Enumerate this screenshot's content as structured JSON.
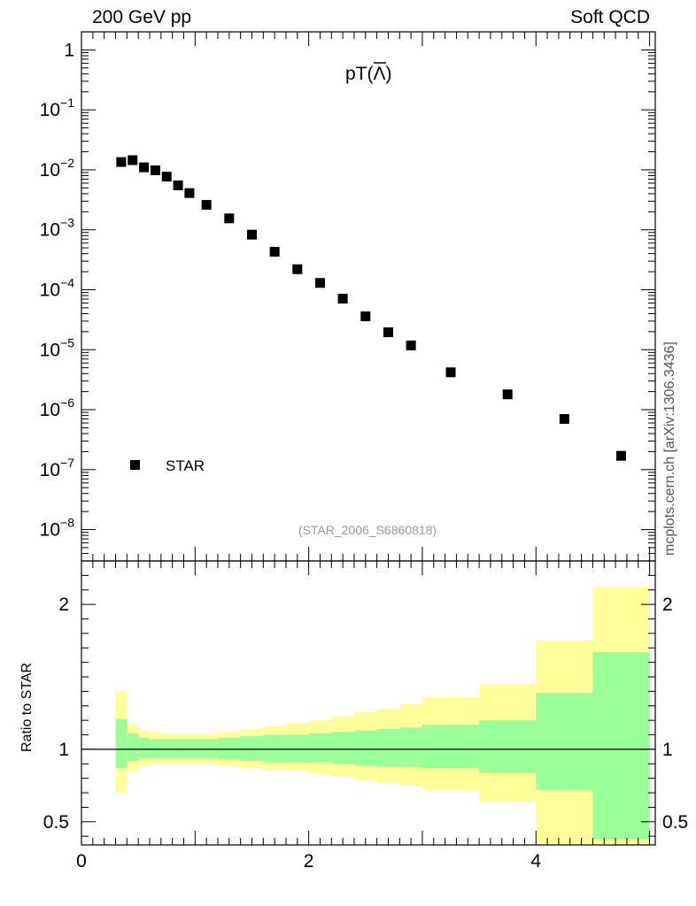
{
  "header": {
    "left": "200 GeV pp",
    "right": "Soft QCD",
    "side_note": "mcplots.cern.ch [arXiv:1306.3436]"
  },
  "chart_data": [
    {
      "type": "scatter",
      "title": "pT(Λ̄)",
      "title_main": "pT(",
      "title_symbol": "Λ",
      "title_close": ")",
      "reference": "(STAR_2006_S6860818)",
      "legend": [
        "STAR"
      ],
      "legend_position": "bottom-left",
      "yscale": "log",
      "xlim": [
        0,
        5.05
      ],
      "ylim": [
        3e-09,
        2
      ],
      "ytick_labels": [
        {
          "base": "1",
          "exp": ""
        },
        {
          "base": "10",
          "exp": "−1"
        },
        {
          "base": "10",
          "exp": "−2"
        },
        {
          "base": "10",
          "exp": "−3"
        },
        {
          "base": "10",
          "exp": "−4"
        },
        {
          "base": "10",
          "exp": "−5"
        },
        {
          "base": "10",
          "exp": "−6"
        },
        {
          "base": "10",
          "exp": "−7"
        },
        {
          "base": "10",
          "exp": "−8"
        }
      ],
      "series": [
        {
          "name": "STAR",
          "x": [
            0.35,
            0.45,
            0.55,
            0.65,
            0.75,
            0.85,
            0.95,
            1.1,
            1.3,
            1.5,
            1.7,
            1.9,
            2.1,
            2.3,
            2.5,
            2.7,
            2.9,
            3.25,
            3.75,
            4.25,
            4.75
          ],
          "y": [
            0.0135,
            0.0145,
            0.011,
            0.0098,
            0.0077,
            0.0055,
            0.0041,
            0.0026,
            0.00155,
            0.00083,
            0.00043,
            0.00022,
            0.00013,
            7.1e-05,
            3.6e-05,
            1.95e-05,
            1.18e-05,
            4.2e-06,
            1.8e-06,
            7e-07,
            1.7e-07
          ]
        }
      ]
    },
    {
      "type": "area",
      "ylabel": "Ratio to STAR",
      "xlim": [
        0,
        5.05
      ],
      "ylim": [
        0.34,
        2.3
      ],
      "xtick_labels": [
        "0",
        "2",
        "4"
      ],
      "ytick_labels": [
        "0.5",
        "1",
        "2"
      ],
      "bin_edges": [
        0.3,
        0.4,
        0.5,
        0.6,
        0.7,
        0.8,
        0.9,
        1.0,
        1.2,
        1.4,
        1.6,
        1.8,
        2.0,
        2.2,
        2.4,
        2.6,
        2.8,
        3.0,
        3.5,
        4.0,
        4.5,
        5.0
      ],
      "bands": [
        {
          "name": "yellow",
          "color": "#ffff99",
          "hi": [
            1.4,
            1.17,
            1.13,
            1.12,
            1.11,
            1.11,
            1.11,
            1.11,
            1.12,
            1.14,
            1.16,
            1.18,
            1.2,
            1.23,
            1.26,
            1.28,
            1.31,
            1.36,
            1.45,
            1.75,
            2.12
          ],
          "lo": [
            0.7,
            0.85,
            0.89,
            0.9,
            0.9,
            0.9,
            0.9,
            0.9,
            0.89,
            0.87,
            0.86,
            0.85,
            0.83,
            0.81,
            0.79,
            0.77,
            0.75,
            0.72,
            0.64,
            0.33,
            0.33
          ]
        },
        {
          "name": "green",
          "color": "#99ff99",
          "hi": [
            1.21,
            1.11,
            1.08,
            1.07,
            1.07,
            1.07,
            1.07,
            1.07,
            1.08,
            1.09,
            1.1,
            1.1,
            1.11,
            1.12,
            1.13,
            1.14,
            1.15,
            1.17,
            1.2,
            1.39,
            1.67
          ],
          "lo": [
            0.87,
            0.92,
            0.94,
            0.94,
            0.94,
            0.94,
            0.94,
            0.94,
            0.93,
            0.92,
            0.91,
            0.91,
            0.91,
            0.9,
            0.89,
            0.88,
            0.88,
            0.87,
            0.84,
            0.72,
            0.38
          ]
        }
      ],
      "reference_line": 1
    }
  ]
}
